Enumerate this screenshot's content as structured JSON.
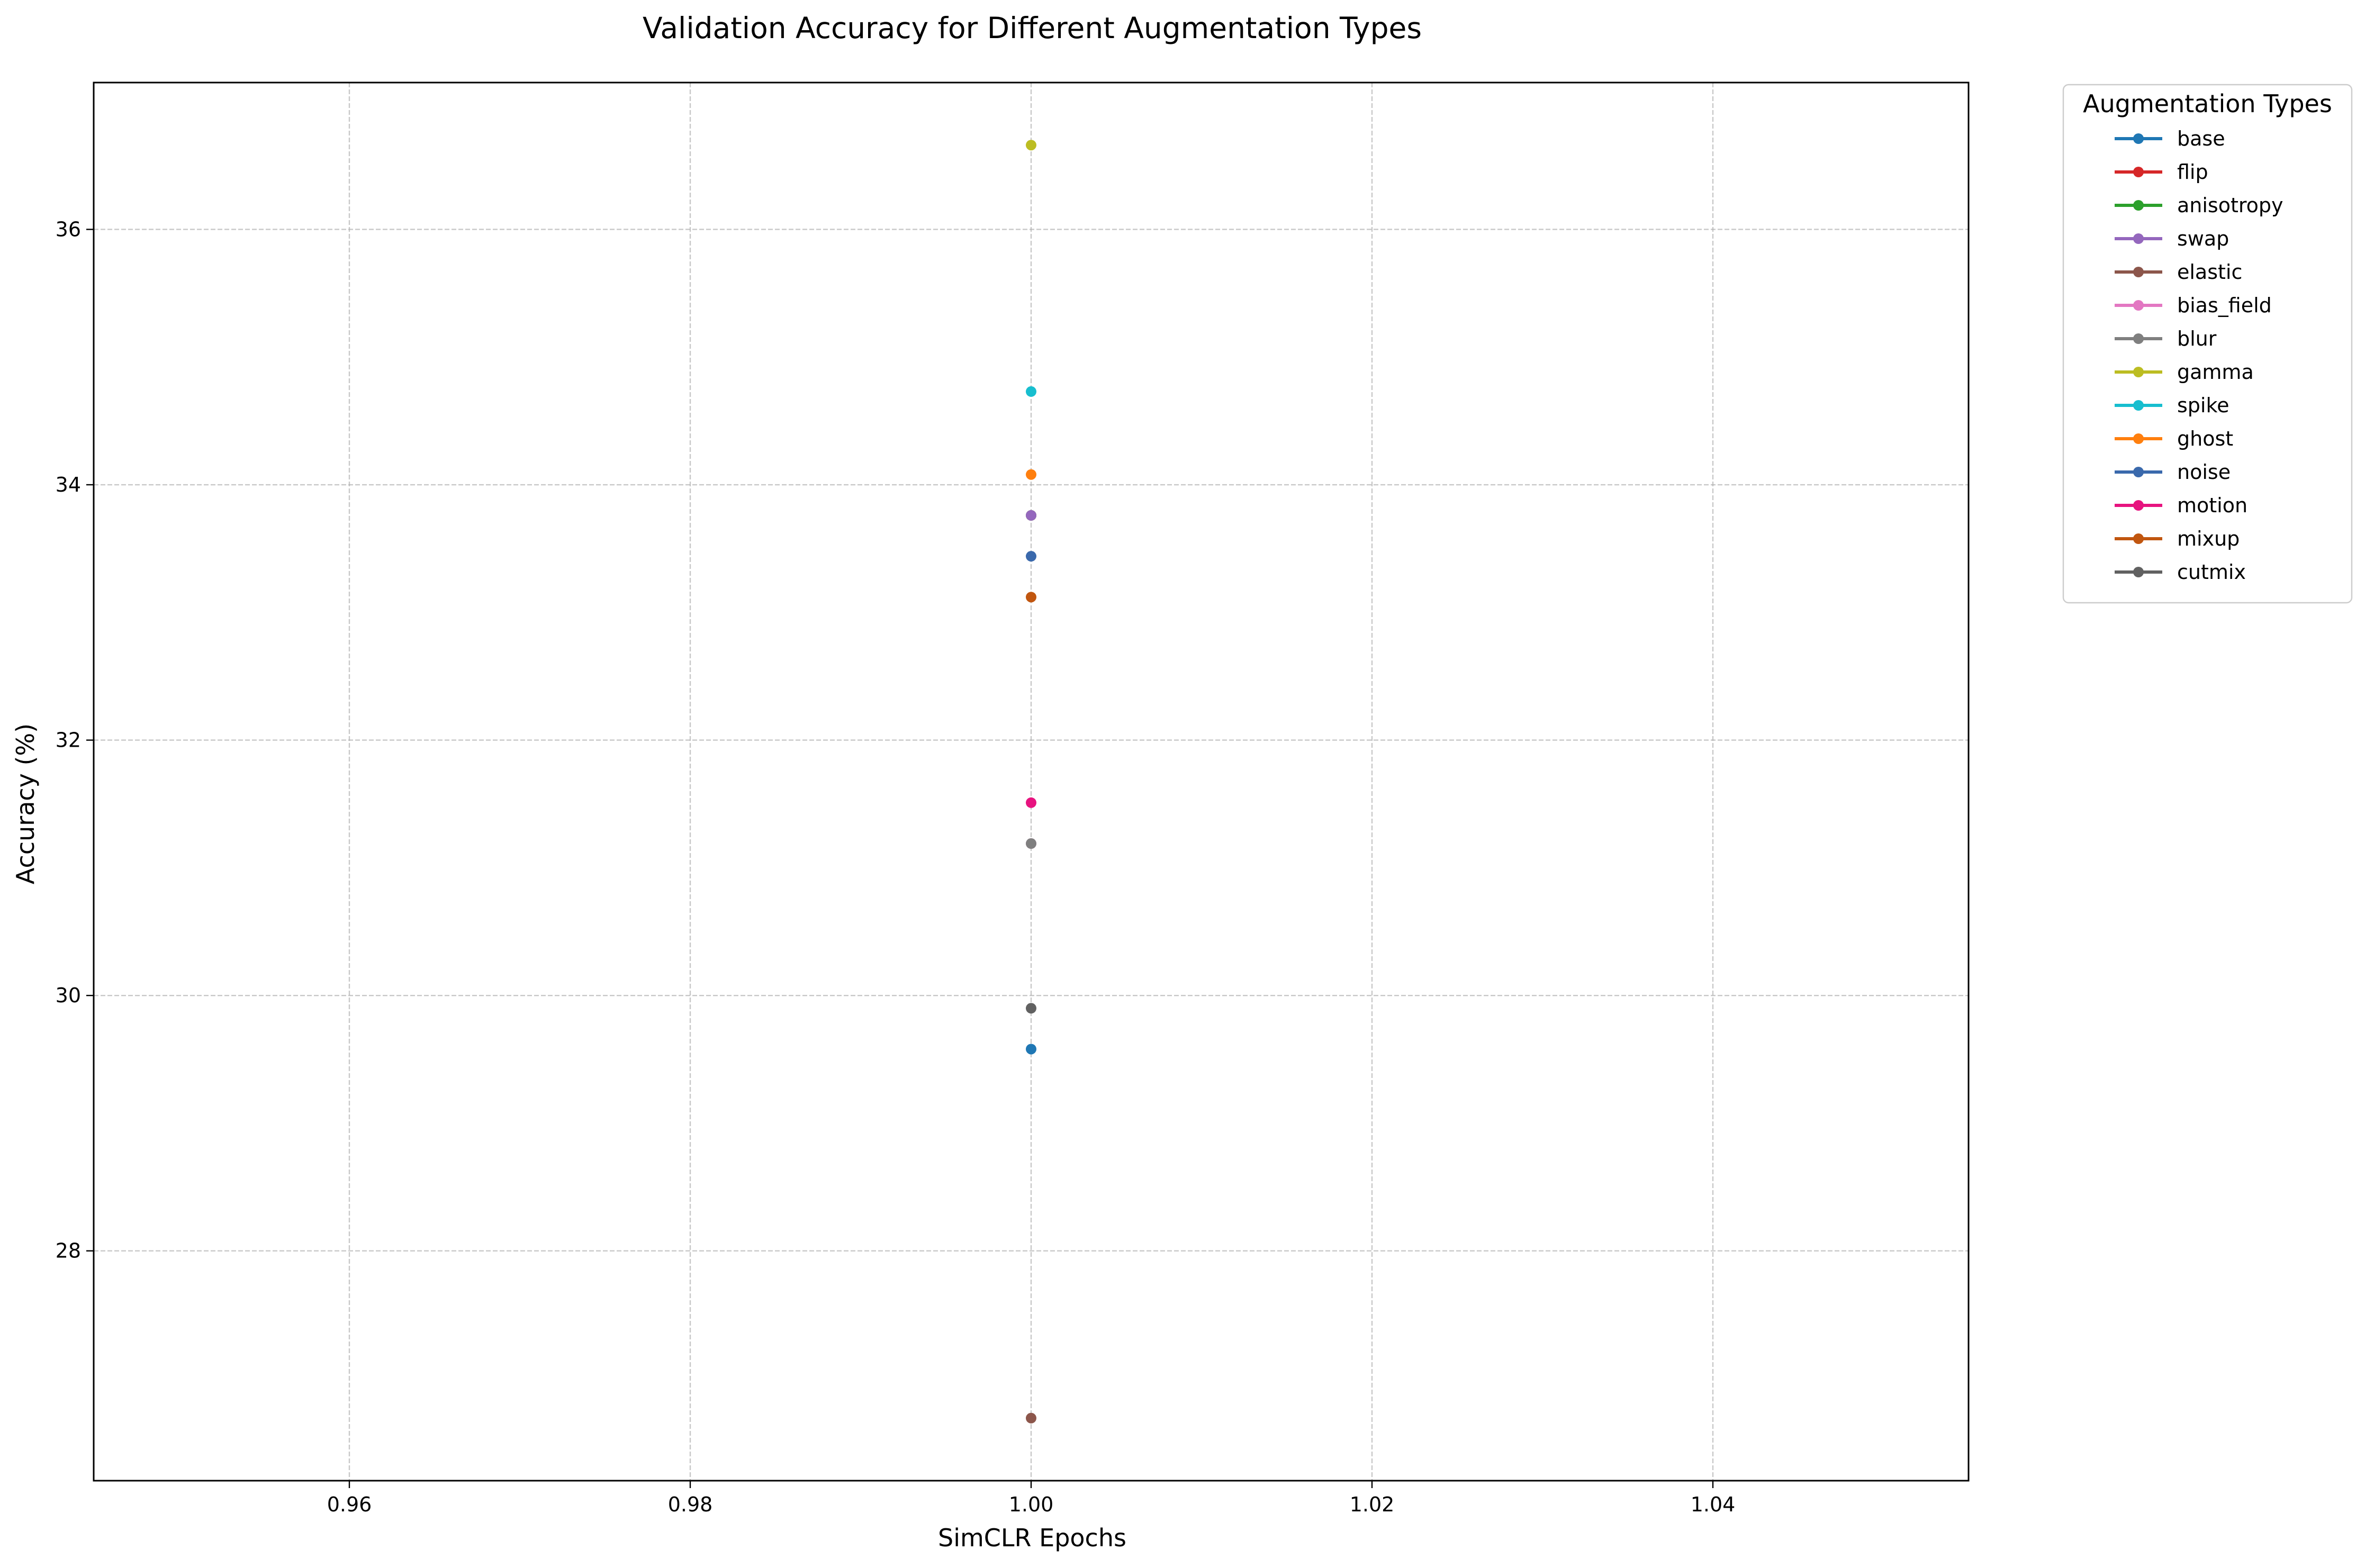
{
  "chart_data": {
    "type": "line",
    "title": "Validation Accuracy for Different Augmentation Types",
    "xlabel": "SimCLR Epochs",
    "ylabel": "Accuracy (%)",
    "xlim": [
      0.945,
      1.055
    ],
    "ylim": [
      26.2,
      37.15
    ],
    "xticks": [
      0.96,
      0.98,
      1.0,
      1.02,
      1.04
    ],
    "xtick_labels": [
      "0.96",
      "0.98",
      "1.00",
      "1.02",
      "1.04"
    ],
    "yticks": [
      28,
      30,
      32,
      34,
      36
    ],
    "ytick_labels": [
      "28",
      "30",
      "32",
      "34",
      "36"
    ],
    "grid": true,
    "legend_title": "Augmentation Types",
    "legend_position": "outside-top-right",
    "series": [
      {
        "name": "base",
        "color": "#1f77b4",
        "x": [
          1.0
        ],
        "y": [
          29.58
        ]
      },
      {
        "name": "flip",
        "color": "#d62728",
        "x": [
          1.0
        ],
        "y": [
          33.76
        ]
      },
      {
        "name": "anisotropy",
        "color": "#2ca02c",
        "x": [
          1.0
        ],
        "y": [
          33.76
        ]
      },
      {
        "name": "swap",
        "color": "#9467bd",
        "x": [
          1.0
        ],
        "y": [
          33.76
        ]
      },
      {
        "name": "elastic",
        "color": "#8c564b",
        "x": [
          1.0
        ],
        "y": [
          26.69
        ]
      },
      {
        "name": "bias_field",
        "color": "#e377c2",
        "x": [
          1.0
        ],
        "y": [
          31.19
        ]
      },
      {
        "name": "blur",
        "color": "#7f7f7f",
        "x": [
          1.0
        ],
        "y": [
          31.19
        ]
      },
      {
        "name": "gamma",
        "color": "#bcbd22",
        "x": [
          1.0
        ],
        "y": [
          36.66
        ]
      },
      {
        "name": "spike",
        "color": "#17becf",
        "x": [
          1.0
        ],
        "y": [
          34.73
        ]
      },
      {
        "name": "ghost",
        "color": "#ff7f0e",
        "x": [
          1.0
        ],
        "y": [
          34.08
        ]
      },
      {
        "name": "noise",
        "color": "#3a69ac",
        "x": [
          1.0
        ],
        "y": [
          33.44
        ]
      },
      {
        "name": "motion",
        "color": "#e7137f",
        "x": [
          1.0
        ],
        "y": [
          31.51
        ]
      },
      {
        "name": "mixup",
        "color": "#c1560f",
        "x": [
          1.0
        ],
        "y": [
          33.12
        ]
      },
      {
        "name": "cutmix",
        "color": "#616161",
        "x": [
          1.0
        ],
        "y": [
          29.9
        ]
      }
    ]
  }
}
